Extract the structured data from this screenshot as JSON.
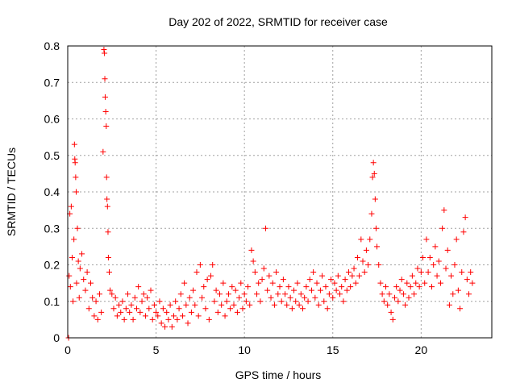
{
  "chart_data": {
    "type": "scatter",
    "title": "Day 202 of 2022, SRMTID for receiver case",
    "xlabel": "GPS time / hours",
    "ylabel": "SRMTID / TECUs",
    "xlim": [
      0,
      24
    ],
    "ylim": [
      0,
      0.8
    ],
    "xticks": [
      0,
      5,
      10,
      15,
      20
    ],
    "xtick_labels": [
      "0",
      "5",
      "10",
      "15",
      "20"
    ],
    "yticks": [
      0,
      0.1,
      0.2,
      0.3,
      0.4,
      0.5,
      0.6,
      0.7,
      0.8
    ],
    "ytick_labels": [
      "0",
      "0.1",
      "0.2",
      "0.3",
      "0.4",
      "0.5",
      "0.6",
      "0.7",
      "0.8"
    ],
    "grid": true,
    "marker": "+",
    "color": "#ff0000",
    "series": [
      {
        "name": "SRMTID",
        "points": [
          [
            0.05,
            0.0
          ],
          [
            0.08,
            0.17
          ],
          [
            0.12,
            0.34
          ],
          [
            0.15,
            0.14
          ],
          [
            0.2,
            0.36
          ],
          [
            0.25,
            0.22
          ],
          [
            0.3,
            0.1
          ],
          [
            0.35,
            0.27
          ],
          [
            0.38,
            0.53
          ],
          [
            0.4,
            0.49
          ],
          [
            0.42,
            0.48
          ],
          [
            0.45,
            0.44
          ],
          [
            0.48,
            0.4
          ],
          [
            0.5,
            0.15
          ],
          [
            0.55,
            0.3
          ],
          [
            0.6,
            0.21
          ],
          [
            0.65,
            0.11
          ],
          [
            0.7,
            0.19
          ],
          [
            0.8,
            0.23
          ],
          [
            0.9,
            0.16
          ],
          [
            1.0,
            0.13
          ],
          [
            1.1,
            0.18
          ],
          [
            1.2,
            0.08
          ],
          [
            1.3,
            0.15
          ],
          [
            1.4,
            0.11
          ],
          [
            1.5,
            0.06
          ],
          [
            1.6,
            0.1
          ],
          [
            1.7,
            0.05
          ],
          [
            1.8,
            0.12
          ],
          [
            1.9,
            0.07
          ],
          [
            2.0,
            0.51
          ],
          [
            2.05,
            0.79
          ],
          [
            2.08,
            0.78
          ],
          [
            2.1,
            0.71
          ],
          [
            2.12,
            0.66
          ],
          [
            2.15,
            0.62
          ],
          [
            2.18,
            0.58
          ],
          [
            2.2,
            0.44
          ],
          [
            2.22,
            0.38
          ],
          [
            2.25,
            0.36
          ],
          [
            2.28,
            0.29
          ],
          [
            2.3,
            0.22
          ],
          [
            2.35,
            0.18
          ],
          [
            2.4,
            0.13
          ],
          [
            2.5,
            0.12
          ],
          [
            2.6,
            0.08
          ],
          [
            2.7,
            0.11
          ],
          [
            2.8,
            0.06
          ],
          [
            2.9,
            0.09
          ],
          [
            3.0,
            0.07
          ],
          [
            3.1,
            0.1
          ],
          [
            3.2,
            0.05
          ],
          [
            3.3,
            0.08
          ],
          [
            3.4,
            0.12
          ],
          [
            3.5,
            0.07
          ],
          [
            3.6,
            0.09
          ],
          [
            3.7,
            0.05
          ],
          [
            3.8,
            0.11
          ],
          [
            3.9,
            0.08
          ],
          [
            4.0,
            0.14
          ],
          [
            4.1,
            0.07
          ],
          [
            4.2,
            0.1
          ],
          [
            4.3,
            0.12
          ],
          [
            4.4,
            0.06
          ],
          [
            4.5,
            0.11
          ],
          [
            4.6,
            0.08
          ],
          [
            4.7,
            0.13
          ],
          [
            4.8,
            0.05
          ],
          [
            4.9,
            0.09
          ],
          [
            5.0,
            0.07
          ],
          [
            5.1,
            0.06
          ],
          [
            5.2,
            0.1
          ],
          [
            5.3,
            0.04
          ],
          [
            5.4,
            0.08
          ],
          [
            5.5,
            0.03
          ],
          [
            5.6,
            0.07
          ],
          [
            5.7,
            0.05
          ],
          [
            5.8,
            0.09
          ],
          [
            5.9,
            0.03
          ],
          [
            6.0,
            0.06
          ],
          [
            6.1,
            0.1
          ],
          [
            6.2,
            0.05
          ],
          [
            6.3,
            0.08
          ],
          [
            6.4,
            0.12
          ],
          [
            6.5,
            0.06
          ],
          [
            6.6,
            0.15
          ],
          [
            6.7,
            0.09
          ],
          [
            6.8,
            0.04
          ],
          [
            6.9,
            0.11
          ],
          [
            7.0,
            0.07
          ],
          [
            7.1,
            0.13
          ],
          [
            7.2,
            0.09
          ],
          [
            7.3,
            0.18
          ],
          [
            7.4,
            0.06
          ],
          [
            7.5,
            0.2
          ],
          [
            7.6,
            0.11
          ],
          [
            7.7,
            0.14
          ],
          [
            7.8,
            0.08
          ],
          [
            7.9,
            0.16
          ],
          [
            8.0,
            0.05
          ],
          [
            8.1,
            0.17
          ],
          [
            8.2,
            0.2
          ],
          [
            8.3,
            0.1
          ],
          [
            8.4,
            0.13
          ],
          [
            8.5,
            0.07
          ],
          [
            8.6,
            0.12
          ],
          [
            8.7,
            0.09
          ],
          [
            8.8,
            0.15
          ],
          [
            8.9,
            0.06
          ],
          [
            9.0,
            0.1
          ],
          [
            9.1,
            0.12
          ],
          [
            9.2,
            0.08
          ],
          [
            9.3,
            0.14
          ],
          [
            9.4,
            0.09
          ],
          [
            9.5,
            0.13
          ],
          [
            9.6,
            0.07
          ],
          [
            9.7,
            0.11
          ],
          [
            9.8,
            0.15
          ],
          [
            9.9,
            0.08
          ],
          [
            10.0,
            0.12
          ],
          [
            10.1,
            0.1
          ],
          [
            10.2,
            0.14
          ],
          [
            10.3,
            0.09
          ],
          [
            10.4,
            0.24
          ],
          [
            10.5,
            0.21
          ],
          [
            10.6,
            0.18
          ],
          [
            10.7,
            0.12
          ],
          [
            10.8,
            0.15
          ],
          [
            10.9,
            0.1
          ],
          [
            11.0,
            0.16
          ],
          [
            11.1,
            0.19
          ],
          [
            11.2,
            0.3
          ],
          [
            11.3,
            0.13
          ],
          [
            11.4,
            0.17
          ],
          [
            11.5,
            0.11
          ],
          [
            11.6,
            0.15
          ],
          [
            11.7,
            0.09
          ],
          [
            11.8,
            0.18
          ],
          [
            11.9,
            0.12
          ],
          [
            12.0,
            0.14
          ],
          [
            12.1,
            0.1
          ],
          [
            12.2,
            0.16
          ],
          [
            12.3,
            0.12
          ],
          [
            12.4,
            0.09
          ],
          [
            12.5,
            0.14
          ],
          [
            12.6,
            0.11
          ],
          [
            12.7,
            0.08
          ],
          [
            12.8,
            0.13
          ],
          [
            12.9,
            0.1
          ],
          [
            13.0,
            0.15
          ],
          [
            13.1,
            0.09
          ],
          [
            13.2,
            0.12
          ],
          [
            13.3,
            0.08
          ],
          [
            13.4,
            0.11
          ],
          [
            13.5,
            0.14
          ],
          [
            13.6,
            0.1
          ],
          [
            13.7,
            0.16
          ],
          [
            13.8,
            0.13
          ],
          [
            13.9,
            0.18
          ],
          [
            14.0,
            0.11
          ],
          [
            14.1,
            0.15
          ],
          [
            14.2,
            0.09
          ],
          [
            14.3,
            0.13
          ],
          [
            14.4,
            0.17
          ],
          [
            14.5,
            0.1
          ],
          [
            14.6,
            0.14
          ],
          [
            14.7,
            0.08
          ],
          [
            14.8,
            0.12
          ],
          [
            14.9,
            0.16
          ],
          [
            15.0,
            0.11
          ],
          [
            15.1,
            0.15
          ],
          [
            15.2,
            0.13
          ],
          [
            15.3,
            0.17
          ],
          [
            15.4,
            0.12
          ],
          [
            15.5,
            0.14
          ],
          [
            15.6,
            0.1
          ],
          [
            15.7,
            0.16
          ],
          [
            15.8,
            0.13
          ],
          [
            15.9,
            0.18
          ],
          [
            16.0,
            0.14
          ],
          [
            16.1,
            0.17
          ],
          [
            16.2,
            0.19
          ],
          [
            16.3,
            0.15
          ],
          [
            16.4,
            0.22
          ],
          [
            16.5,
            0.17
          ],
          [
            16.6,
            0.27
          ],
          [
            16.7,
            0.21
          ],
          [
            16.8,
            0.18
          ],
          [
            16.9,
            0.24
          ],
          [
            17.0,
            0.2
          ],
          [
            17.1,
            0.27
          ],
          [
            17.2,
            0.34
          ],
          [
            17.25,
            0.44
          ],
          [
            17.3,
            0.48
          ],
          [
            17.35,
            0.45
          ],
          [
            17.4,
            0.38
          ],
          [
            17.45,
            0.3
          ],
          [
            17.5,
            0.25
          ],
          [
            17.6,
            0.2
          ],
          [
            17.7,
            0.15
          ],
          [
            17.8,
            0.12
          ],
          [
            17.9,
            0.1
          ],
          [
            18.0,
            0.14
          ],
          [
            18.1,
            0.09
          ],
          [
            18.2,
            0.12
          ],
          [
            18.3,
            0.07
          ],
          [
            18.4,
            0.05
          ],
          [
            18.5,
            0.11
          ],
          [
            18.6,
            0.14
          ],
          [
            18.7,
            0.1
          ],
          [
            18.8,
            0.13
          ],
          [
            18.9,
            0.16
          ],
          [
            19.0,
            0.12
          ],
          [
            19.1,
            0.09
          ],
          [
            19.2,
            0.15
          ],
          [
            19.3,
            0.11
          ],
          [
            19.4,
            0.14
          ],
          [
            19.5,
            0.17
          ],
          [
            19.6,
            0.12
          ],
          [
            19.7,
            0.15
          ],
          [
            19.8,
            0.19
          ],
          [
            19.9,
            0.14
          ],
          [
            20.0,
            0.18
          ],
          [
            20.1,
            0.22
          ],
          [
            20.2,
            0.15
          ],
          [
            20.3,
            0.27
          ],
          [
            20.4,
            0.18
          ],
          [
            20.5,
            0.22
          ],
          [
            20.6,
            0.14
          ],
          [
            20.7,
            0.2
          ],
          [
            20.8,
            0.25
          ],
          [
            20.9,
            0.17
          ],
          [
            21.0,
            0.21
          ],
          [
            21.1,
            0.15
          ],
          [
            21.2,
            0.3
          ],
          [
            21.3,
            0.35
          ],
          [
            21.4,
            0.19
          ],
          [
            21.5,
            0.24
          ],
          [
            21.6,
            0.09
          ],
          [
            21.7,
            0.17
          ],
          [
            21.8,
            0.12
          ],
          [
            21.9,
            0.2
          ],
          [
            22.0,
            0.27
          ],
          [
            22.1,
            0.13
          ],
          [
            22.2,
            0.08
          ],
          [
            22.3,
            0.18
          ],
          [
            22.4,
            0.29
          ],
          [
            22.5,
            0.33
          ],
          [
            22.6,
            0.16
          ],
          [
            22.7,
            0.12
          ],
          [
            22.8,
            0.18
          ],
          [
            22.9,
            0.15
          ]
        ]
      }
    ]
  }
}
